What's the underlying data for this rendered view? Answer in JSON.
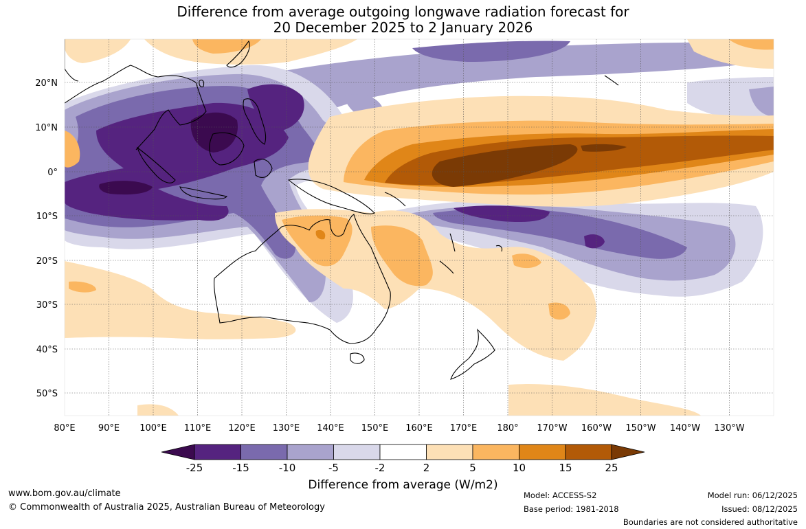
{
  "title": {
    "line1": "Difference from average outgoing longwave radiation forecast for",
    "line2": "20 December 2025 to 2 January 2026"
  },
  "map": {
    "lon_labels": [
      "80°E",
      "90°E",
      "100°E",
      "110°E",
      "120°E",
      "130°E",
      "140°E",
      "150°E",
      "160°E",
      "170°E",
      "180°",
      "170°W",
      "160°W",
      "150°W",
      "140°W",
      "130°W"
    ],
    "lat_labels": [
      "20°N",
      "10°N",
      "0°",
      "10°S",
      "20°S",
      "30°S",
      "40°S",
      "50°S"
    ]
  },
  "legend": {
    "title": "Difference from average (W/m2)",
    "tick_labels": [
      "-25",
      "-15",
      "-10",
      "-5",
      "-2",
      "2",
      "5",
      "10",
      "15",
      "25"
    ],
    "colors": [
      "#3b0a4f",
      "#55237f",
      "#7a6aad",
      "#a9a3cd",
      "#d9d8ea",
      "#ffffff",
      "#fde0b6",
      "#fbb660",
      "#e08618",
      "#b25a07",
      "#7a3a05"
    ]
  },
  "footer": {
    "website": "www.bom.gov.au/climate",
    "copyright": "© Commonwealth of Australia 2025, Australian Bureau of Meteorology",
    "model": "Model: ACCESS-S2",
    "base_period": "Base period: 1981-2018",
    "model_run": "Model run: 06/12/2025",
    "issued": "Issued: 08/12/2025",
    "disclaimer": "Boundaries are not considered authoritative"
  }
}
